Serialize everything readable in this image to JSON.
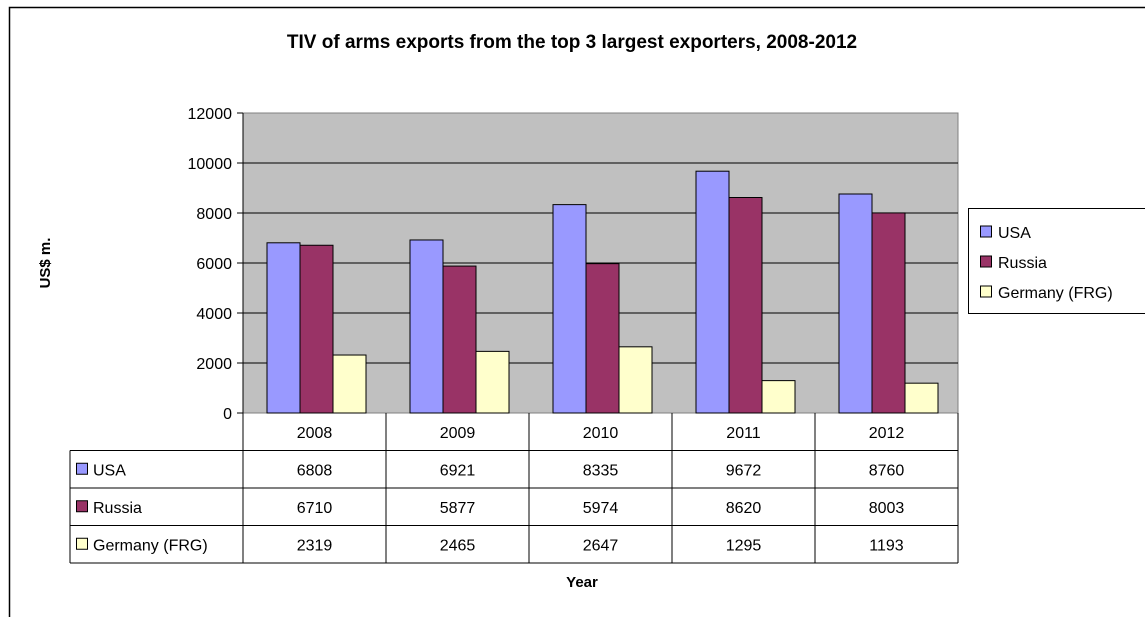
{
  "chart_data": {
    "type": "bar",
    "title": "TIV of arms exports from the top 3 largest exporters, 2008-2012",
    "xlabel": "Year",
    "ylabel": "US$ m.",
    "categories": [
      "2008",
      "2009",
      "2010",
      "2011",
      "2012"
    ],
    "ylim": [
      0,
      12000
    ],
    "yticks": [
      0,
      2000,
      4000,
      6000,
      8000,
      10000,
      12000
    ],
    "grid": true,
    "legend": "right",
    "data_table": true,
    "series": [
      {
        "name": "USA",
        "values": [
          6808,
          6921,
          8335,
          9672,
          8760
        ],
        "color": "#9999ff"
      },
      {
        "name": "Russia",
        "values": [
          6710,
          5877,
          5974,
          8620,
          8003
        ],
        "color": "#993366"
      },
      {
        "name": "Germany (FRG)",
        "values": [
          2319,
          2465,
          2647,
          1295,
          1193
        ],
        "color": "#ffffcc"
      }
    ],
    "plot_background": "#c0c0c0"
  }
}
